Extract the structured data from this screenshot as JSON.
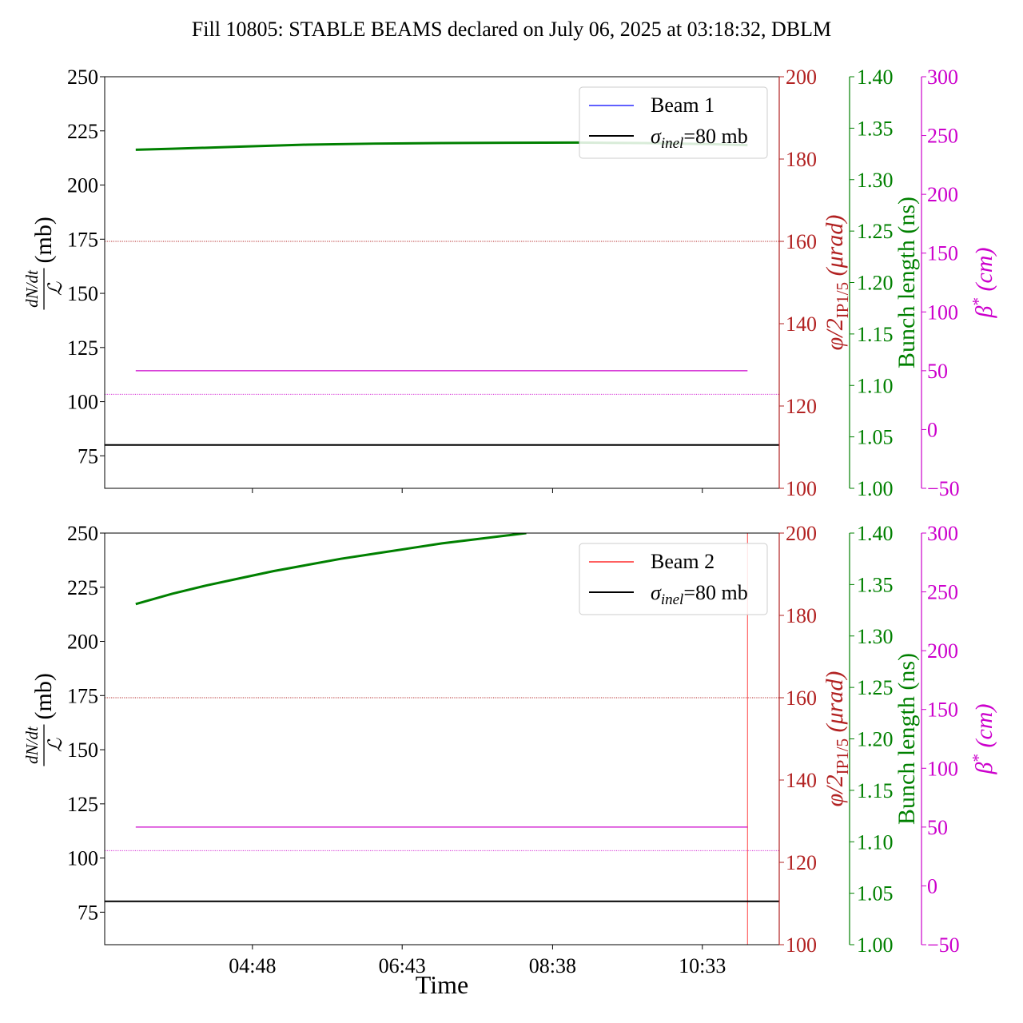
{
  "title": "Fill 10805: STABLE BEAMS declared on July 06, 2025 at 03:18:32, DBLM",
  "xlabel": "Time",
  "colors": {
    "beam1": "#0000ff",
    "beam2": "#ff0000",
    "sigma": "#000000",
    "crossing_angle": "#b22222",
    "bunch_length": "#008000",
    "beta_star": "#cc00cc"
  },
  "chart_data": [
    {
      "type": "line",
      "panel": "top",
      "x_ticks": [],
      "ylabel_left": {
        "frac_num": "dN/dt",
        "frac_den": "ℒ",
        "unit": "(mb)"
      },
      "ylabel_right1": {
        "main": "φ/2",
        "sub": "IP1/5",
        "unit": "(μrad)"
      },
      "ylabel_right2": "Bunch length (ns)",
      "ylabel_right3": {
        "main": "β",
        "sup": "*",
        "unit": "(cm)"
      },
      "left_axis": {
        "ylim": [
          60,
          250
        ],
        "ticks": [
          "75",
          "100",
          "125",
          "150",
          "175",
          "200",
          "225",
          "250"
        ],
        "tick_values": [
          75,
          100,
          125,
          150,
          175,
          200,
          225,
          250
        ]
      },
      "right1_axis": {
        "ylim": [
          100,
          200
        ],
        "ticks": [
          "100",
          "120",
          "140",
          "160",
          "180",
          "200"
        ],
        "tick_values": [
          100,
          120,
          140,
          160,
          180,
          200
        ]
      },
      "right2_axis": {
        "ylim": [
          1.0,
          1.4
        ],
        "ticks": [
          "1.00",
          "1.05",
          "1.10",
          "1.15",
          "1.20",
          "1.25",
          "1.30",
          "1.35",
          "1.40"
        ],
        "tick_values": [
          1.0,
          1.05,
          1.1,
          1.15,
          1.2,
          1.25,
          1.3,
          1.35,
          1.4
        ]
      },
      "right3_axis": {
        "ylim": [
          -50,
          300
        ],
        "ticks": [
          "−50",
          "0",
          "50",
          "100",
          "150",
          "200",
          "250",
          "300"
        ],
        "tick_values": [
          -50,
          0,
          50,
          100,
          150,
          200,
          250,
          300
        ]
      },
      "legend": {
        "position": "upper right",
        "entries": [
          {
            "label": "Beam 1",
            "color": "#0000ff"
          },
          {
            "label_main": "σ",
            "label_sub": "inel",
            "label_rest": "=80 mb",
            "color": "#000000"
          }
        ]
      },
      "series": [
        {
          "name": "Beam 1",
          "axis": "left",
          "color": "#0000ff",
          "x": [],
          "y": []
        },
        {
          "name": "σinel=80 mb",
          "axis": "left",
          "color": "#000000",
          "x": [
            0,
            1
          ],
          "y": [
            80,
            80
          ]
        },
        {
          "axis": "right2",
          "color": "#008000",
          "x_frac": [
            0.046,
            0.1,
            0.2,
            0.3,
            0.4,
            0.5,
            0.6,
            0.7,
            0.8,
            0.9,
            0.953
          ],
          "y": [
            1.329,
            1.33,
            1.332,
            1.334,
            1.335,
            1.3355,
            1.3358,
            1.336,
            1.3355,
            1.3345,
            1.3335
          ]
        },
        {
          "axis": "right3",
          "color": "#cc00cc",
          "x_frac": [
            0.046,
            0.953
          ],
          "y": [
            50,
            50
          ]
        }
      ],
      "reference_lines": [
        {
          "axis": "right1",
          "value": 160,
          "color": "#b22222",
          "style": "dotted"
        },
        {
          "axis": "right3",
          "value": 30,
          "color": "#cc00cc",
          "style": "dotted"
        }
      ]
    },
    {
      "type": "line",
      "panel": "bottom",
      "x_ticks": [
        "04:48",
        "06:43",
        "08:38",
        "10:33"
      ],
      "x_tick_frac": [
        0.219,
        0.441,
        0.664,
        0.886
      ],
      "ylabel_left": {
        "frac_num": "dN/dt",
        "frac_den": "ℒ",
        "unit": "(mb)"
      },
      "ylabel_right1": {
        "main": "φ/2",
        "sub": "IP1/5",
        "unit": "(μrad)"
      },
      "ylabel_right2": "Bunch length (ns)",
      "ylabel_right3": {
        "main": "β",
        "sup": "*",
        "unit": "(cm)"
      },
      "left_axis": {
        "ylim": [
          60,
          250
        ],
        "ticks": [
          "75",
          "100",
          "125",
          "150",
          "175",
          "200",
          "225",
          "250"
        ],
        "tick_values": [
          75,
          100,
          125,
          150,
          175,
          200,
          225,
          250
        ]
      },
      "right1_axis": {
        "ylim": [
          100,
          200
        ],
        "ticks": [
          "100",
          "120",
          "140",
          "160",
          "180",
          "200"
        ],
        "tick_values": [
          100,
          120,
          140,
          160,
          180,
          200
        ]
      },
      "right2_axis": {
        "ylim": [
          1.0,
          1.4
        ],
        "ticks": [
          "1.00",
          "1.05",
          "1.10",
          "1.15",
          "1.20",
          "1.25",
          "1.30",
          "1.35",
          "1.40"
        ],
        "tick_values": [
          1.0,
          1.05,
          1.1,
          1.15,
          1.2,
          1.25,
          1.3,
          1.35,
          1.4
        ]
      },
      "right3_axis": {
        "ylim": [
          -50,
          300
        ],
        "ticks": [
          "−50",
          "0",
          "50",
          "100",
          "150",
          "200",
          "250",
          "300"
        ],
        "tick_values": [
          -50,
          0,
          50,
          100,
          150,
          200,
          250,
          300
        ]
      },
      "legend": {
        "position": "upper right",
        "entries": [
          {
            "label": "Beam 2",
            "color": "#ff0000"
          },
          {
            "label_main": "σ",
            "label_sub": "inel",
            "label_rest": "=80 mb",
            "color": "#000000"
          }
        ]
      },
      "series": [
        {
          "name": "Beam 2",
          "axis": "left",
          "color": "#ff0000",
          "x_frac": [
            0.953,
            0.953
          ],
          "y": [
            60,
            250
          ]
        },
        {
          "name": "σinel=80 mb",
          "axis": "left",
          "color": "#000000",
          "x": [
            0,
            1
          ],
          "y": [
            80,
            80
          ]
        },
        {
          "axis": "right2",
          "color": "#008000",
          "x_frac": [
            0.046,
            0.1,
            0.15,
            0.2,
            0.25,
            0.3,
            0.35,
            0.4,
            0.45,
            0.5,
            0.55,
            0.6,
            0.625
          ],
          "y": [
            1.331,
            1.341,
            1.349,
            1.356,
            1.363,
            1.369,
            1.375,
            1.38,
            1.385,
            1.39,
            1.394,
            1.398,
            1.4
          ]
        },
        {
          "axis": "right3",
          "color": "#cc00cc",
          "x_frac": [
            0.046,
            0.953
          ],
          "y": [
            50,
            50
          ]
        }
      ],
      "reference_lines": [
        {
          "axis": "right1",
          "value": 160,
          "color": "#b22222",
          "style": "dotted"
        },
        {
          "axis": "right3",
          "value": 30,
          "color": "#cc00cc",
          "style": "dotted"
        }
      ]
    }
  ]
}
